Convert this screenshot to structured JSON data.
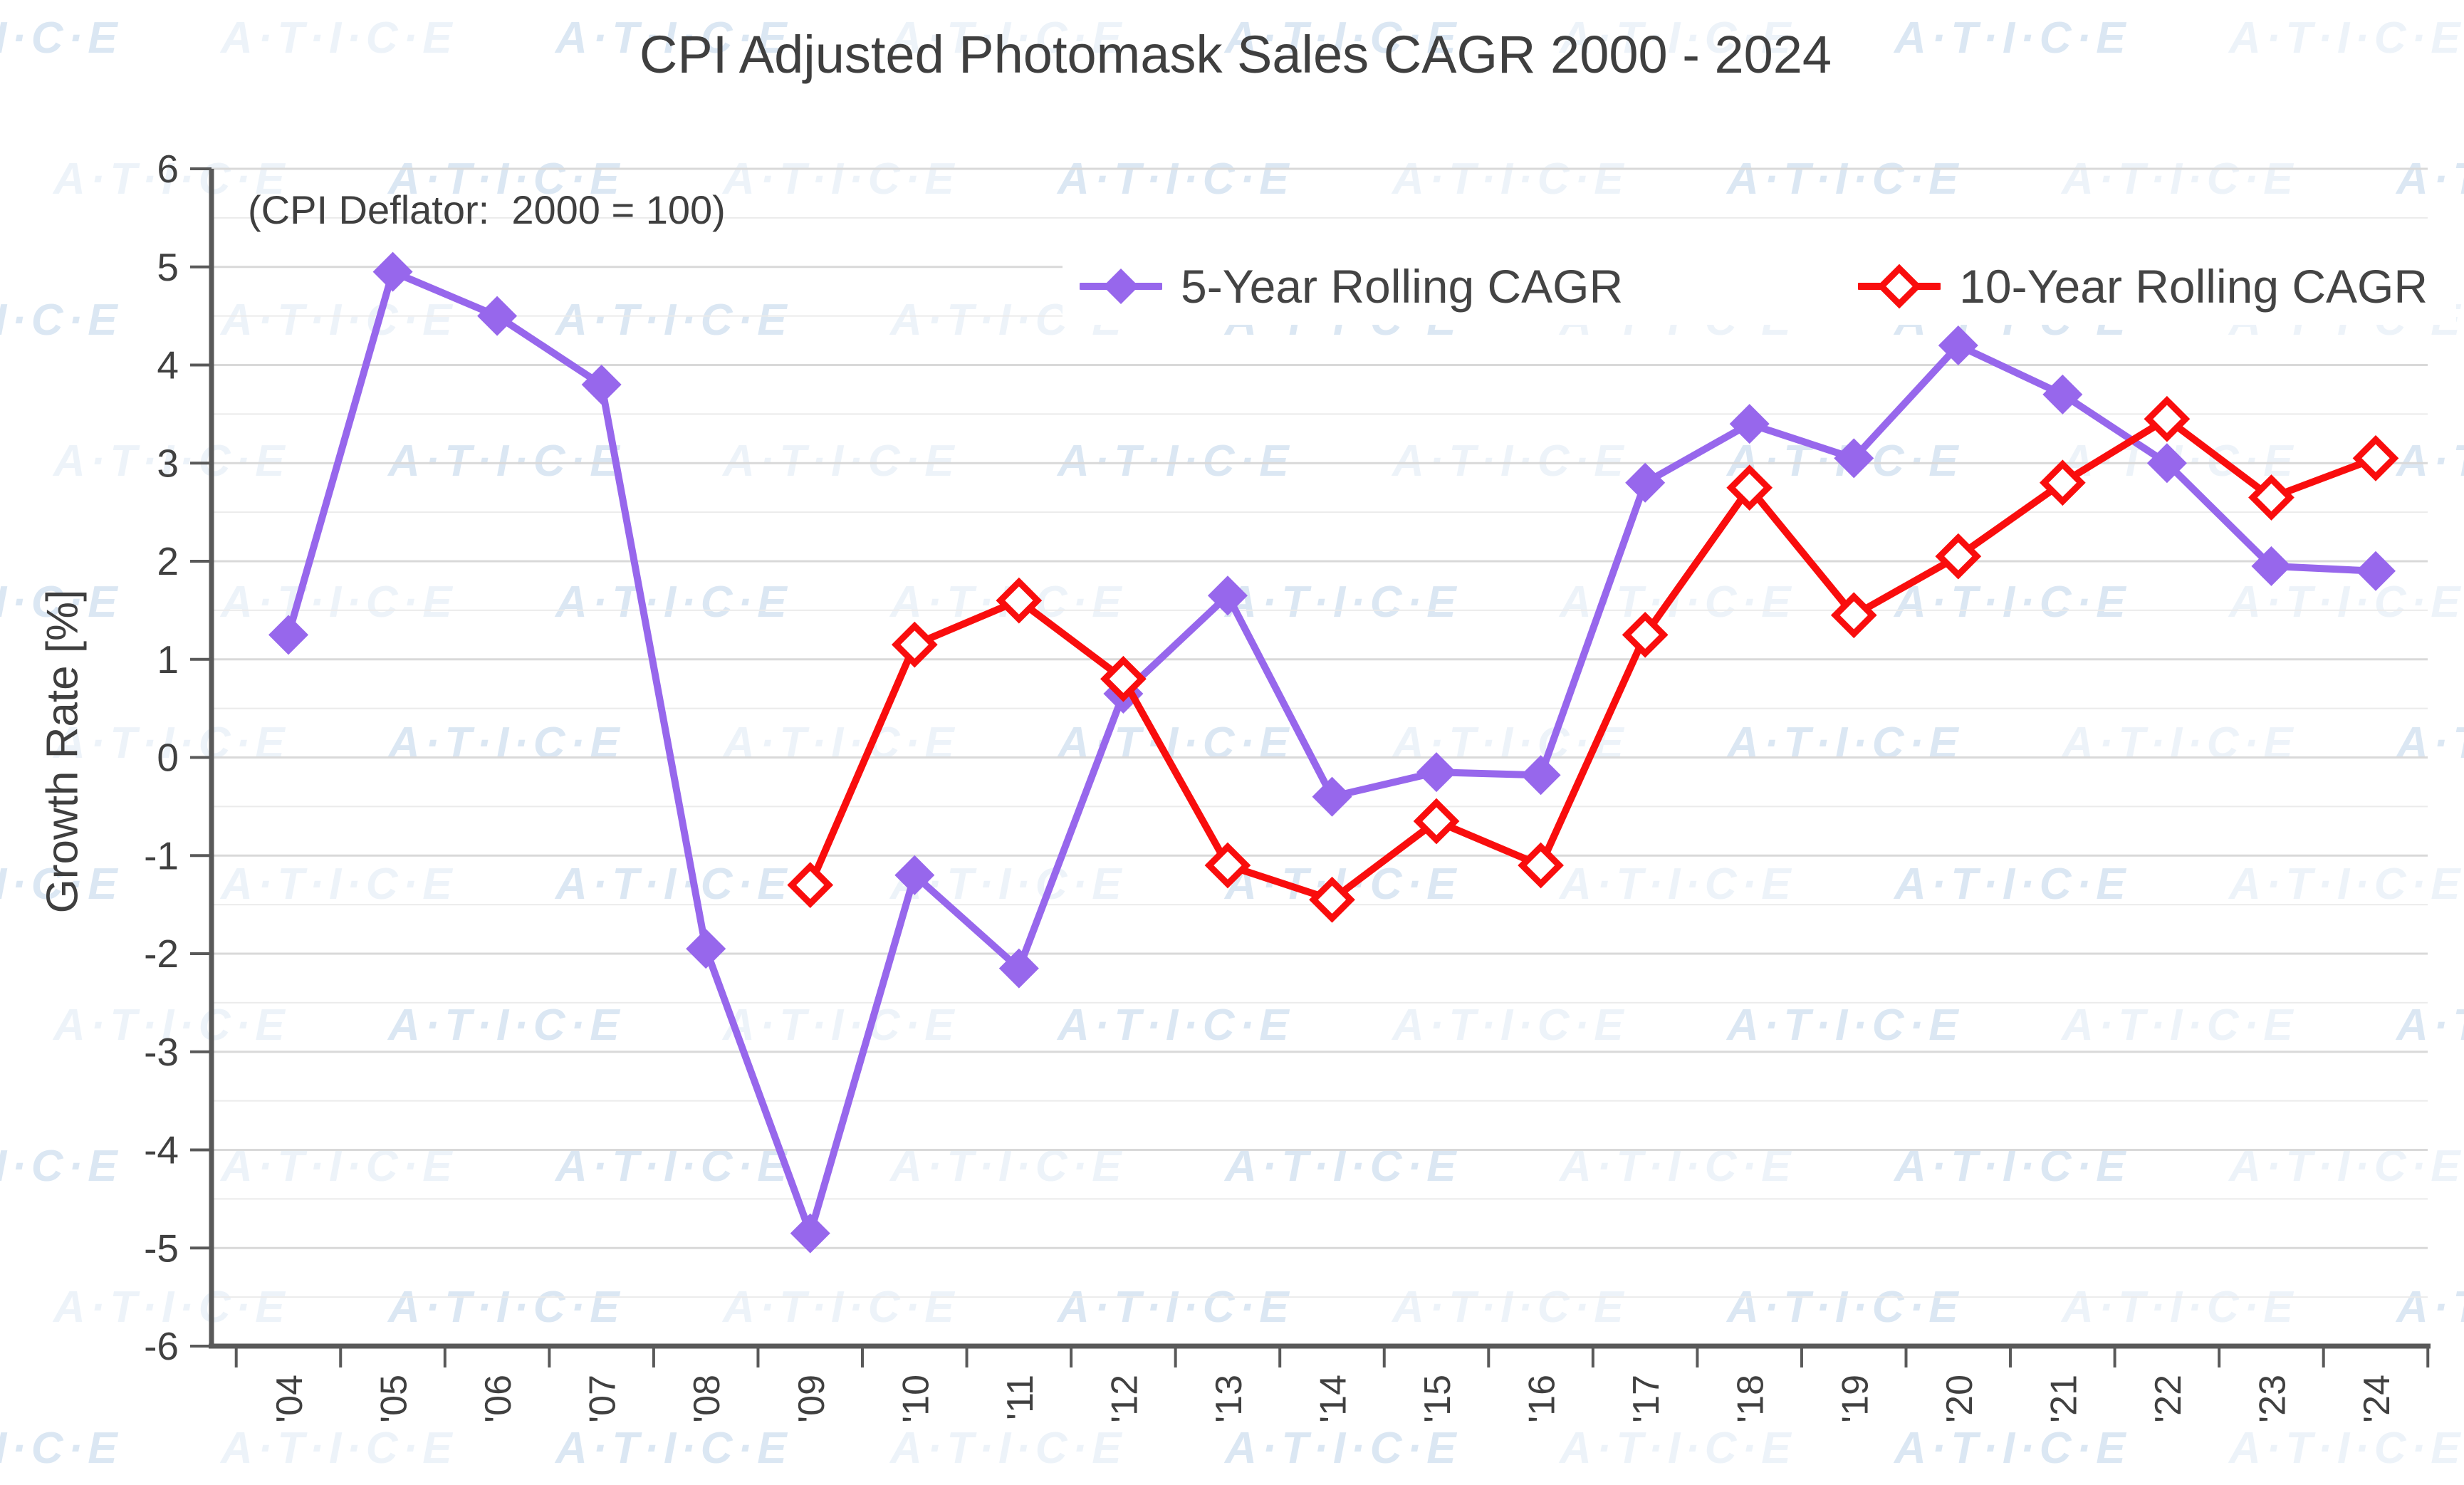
{
  "title": "CPI Adjusted Photomask Sales CAGR 2000 - 2024",
  "annotation": "(CPI Deflator:  2000 = 100)",
  "watermark": {
    "text": "A·T·I·C·E",
    "color": "#d5e3f1"
  },
  "legend": [
    {
      "label": "5-Year Rolling CAGR",
      "color": "#9767EC",
      "marker": "diamond-filled"
    },
    {
      "label": "10-Year Rolling CAGR",
      "color": "#F90D0D",
      "marker": "diamond-open"
    }
  ],
  "chart_data": {
    "type": "line",
    "title": "CPI Adjusted Photomask Sales CAGR 2000 - 2024",
    "xlabel": "",
    "ylabel": "Growth Rate [%]",
    "ylim": [
      -6,
      6
    ],
    "ytick_step": 1,
    "minor_grid_step": 0.5,
    "grid": true,
    "legend_position": "inside-top-right",
    "categories": [
      "'04",
      "'05",
      "'06",
      "'07",
      "'08",
      "'09",
      "'10",
      "'11",
      "'12",
      "'13",
      "'14",
      "'15",
      "'16",
      "'17",
      "'18",
      "'19",
      "'20",
      "'21",
      "'22",
      "'23",
      "'24"
    ],
    "series": [
      {
        "name": "5-Year Rolling CAGR",
        "marker": "diamond-filled",
        "color": "#9767EC",
        "values": [
          1.25,
          4.95,
          4.5,
          3.8,
          -1.95,
          -4.85,
          -1.2,
          -2.15,
          0.65,
          1.65,
          -0.4,
          -0.15,
          -0.18,
          2.8,
          3.4,
          3.05,
          4.2,
          3.7,
          3.0,
          1.95,
          1.9
        ]
      },
      {
        "name": "10-Year Rolling CAGR",
        "marker": "diamond-open",
        "color": "#F90D0D",
        "values": [
          null,
          null,
          null,
          null,
          null,
          -1.3,
          1.15,
          1.6,
          0.8,
          -1.1,
          -1.45,
          -0.65,
          -1.1,
          1.25,
          2.75,
          1.45,
          2.05,
          2.8,
          3.45,
          2.65,
          3.05
        ]
      }
    ],
    "axis_color": "#595959",
    "grid_major_color": "#D9D9D9",
    "grid_minor_color": "#EBEBEB",
    "tick_label_color": "#404040"
  }
}
